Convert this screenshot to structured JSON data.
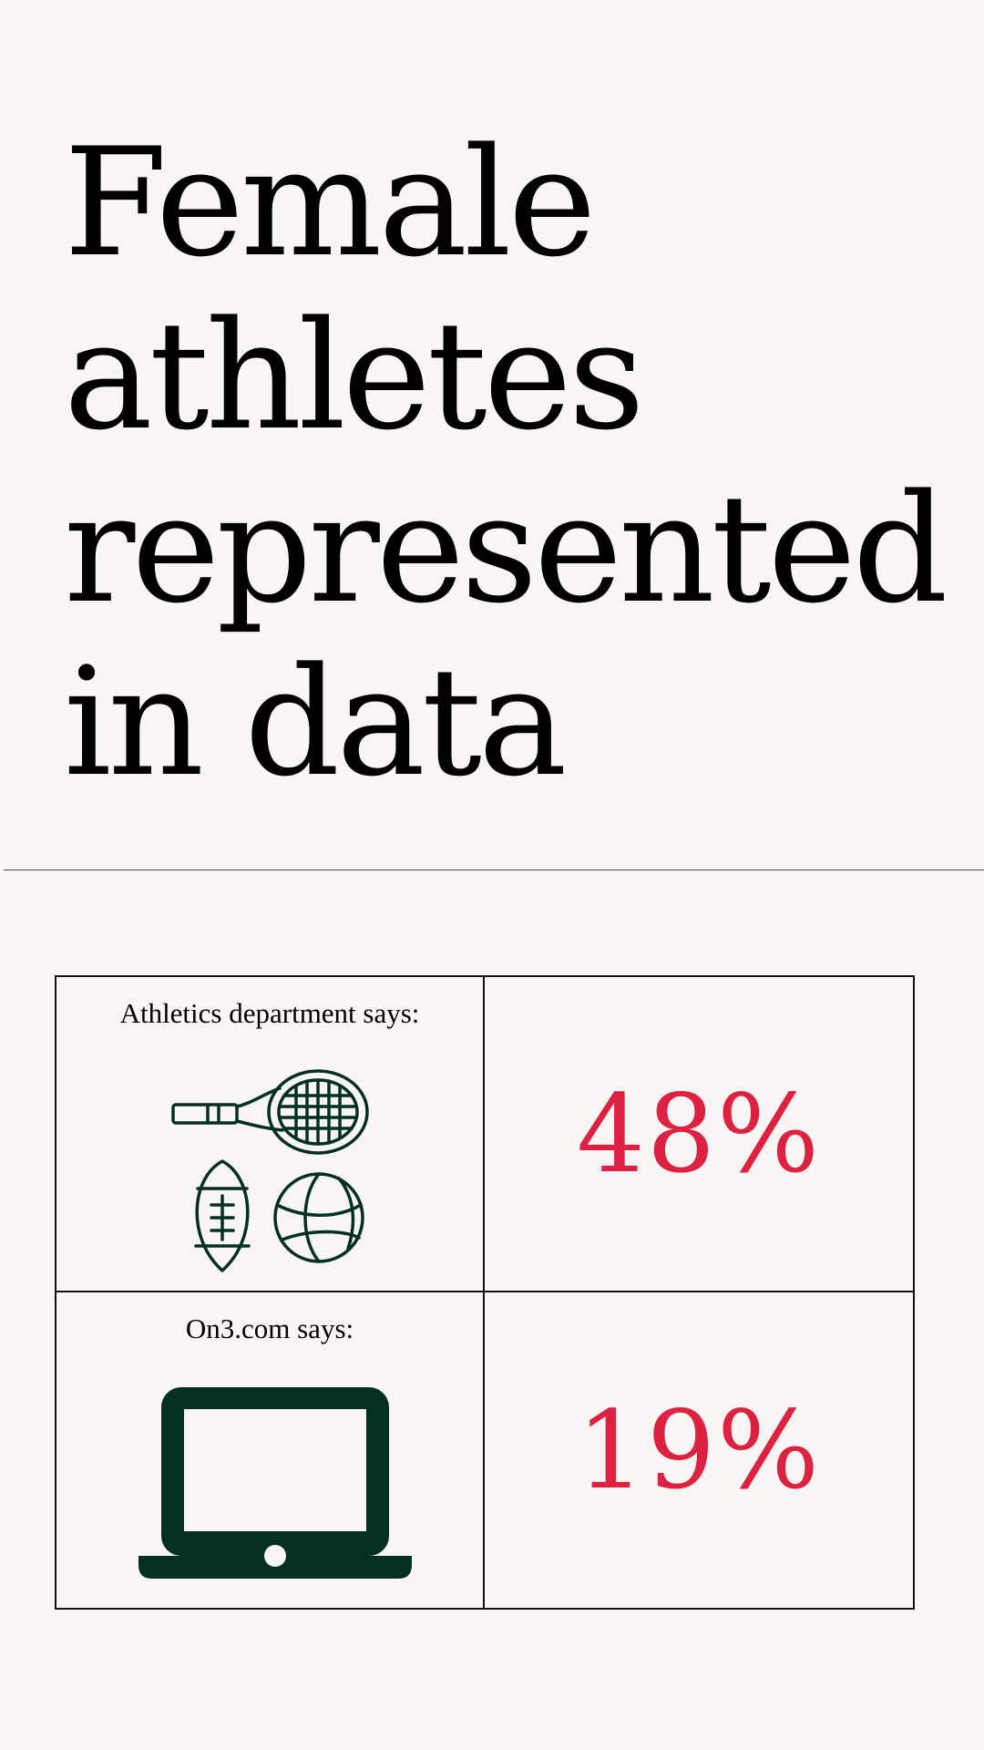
{
  "headline": {
    "lines": [
      "Female",
      "athletes",
      "represented",
      "in data"
    ]
  },
  "comparison": {
    "rows": [
      {
        "label": "Athletics department says:",
        "icon": "sports-equipment-icon",
        "value": "48%"
      },
      {
        "label": "On3.com says:",
        "icon": "laptop-icon",
        "value": "19%"
      }
    ]
  },
  "colors": {
    "background": "#f9f5f4",
    "accent": "#dd2140",
    "icon": "#04301f",
    "text": "#000000"
  }
}
